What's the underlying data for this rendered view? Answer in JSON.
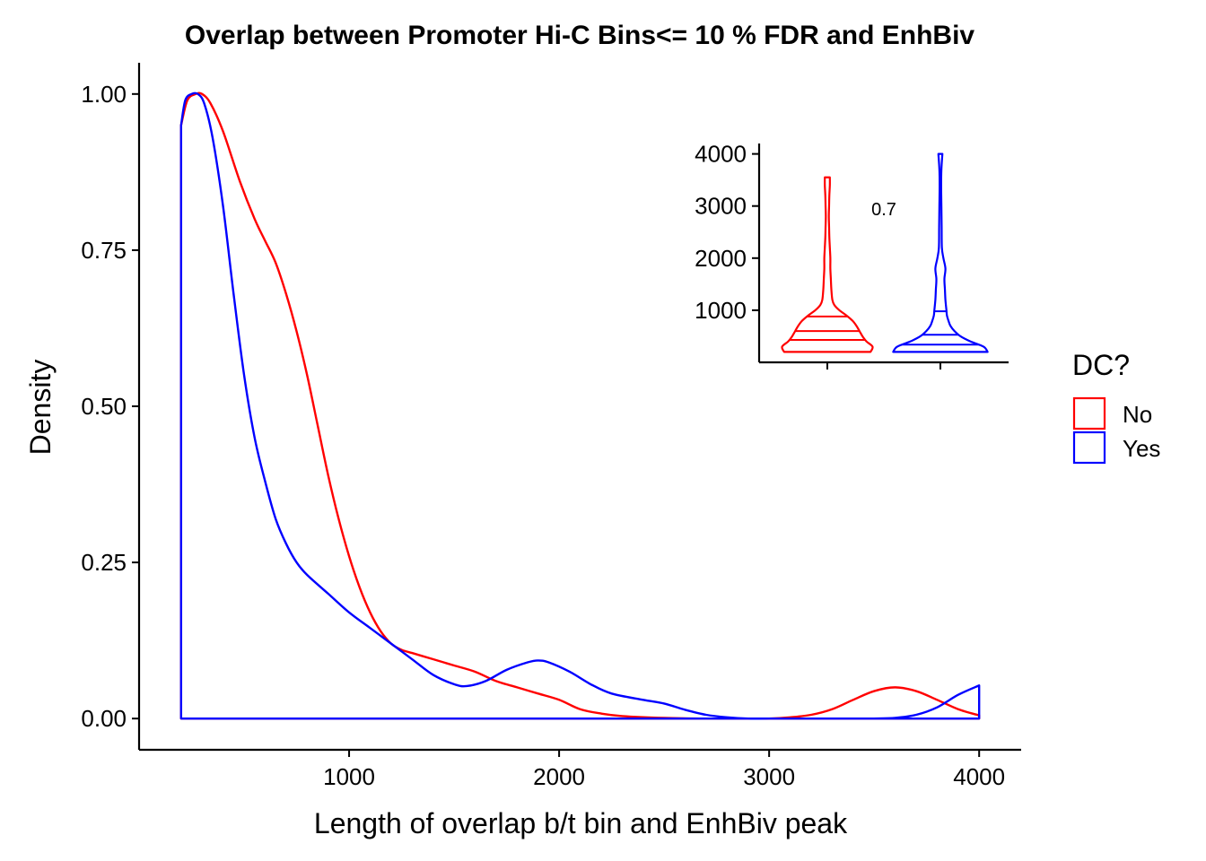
{
  "chart_data": [
    {
      "type": "area",
      "title": "Overlap between Promoter Hi-C Bins<= 10 % FDR and EnhBiv",
      "xlabel": "Length of overlap b/t bin and EnhBiv peak",
      "ylabel": "Density",
      "xlim": [
        0,
        4200
      ],
      "ylim": [
        -0.05,
        1.05
      ],
      "x_ticks": [
        1000,
        2000,
        3000,
        4000
      ],
      "x_tick_labels": [
        "1000",
        "2000",
        "3000",
        "4000"
      ],
      "y_ticks": [
        0,
        0.25,
        0.5,
        0.75,
        1.0
      ],
      "y_tick_labels": [
        "0.00",
        "0.25",
        "0.50",
        "0.75",
        "1.00"
      ],
      "grid": false,
      "legend": {
        "title": "DC?",
        "placement": "right",
        "entries": [
          {
            "label": "No",
            "color": "#ff0000"
          },
          {
            "label": "Yes",
            "color": "#0000ff"
          }
        ]
      },
      "series": [
        {
          "name": "No",
          "color": "#ff0000",
          "x": [
            200,
            230,
            270,
            300,
            340,
            400,
            480,
            550,
            600,
            650,
            700,
            750,
            800,
            850,
            900,
            950,
            1000,
            1050,
            1100,
            1150,
            1200,
            1250,
            1300,
            1350,
            1400,
            1450,
            1500,
            1600,
            1700,
            1800,
            1900,
            2000,
            2100,
            2200,
            2300,
            2500,
            2700,
            2900,
            3000,
            3100,
            3200,
            3300,
            3400,
            3500,
            3600,
            3700,
            3800,
            3900,
            4000
          ],
          "y": [
            0.95,
            0.99,
            1.0,
            1.0,
            0.985,
            0.94,
            0.86,
            0.8,
            0.765,
            0.73,
            0.68,
            0.62,
            0.55,
            0.47,
            0.39,
            0.32,
            0.26,
            0.21,
            0.17,
            0.14,
            0.12,
            0.11,
            0.105,
            0.1,
            0.095,
            0.09,
            0.085,
            0.075,
            0.06,
            0.05,
            0.04,
            0.03,
            0.015,
            0.008,
            0.004,
            0.001,
            0.0,
            0.0,
            0.0,
            0.002,
            0.006,
            0.015,
            0.03,
            0.044,
            0.05,
            0.044,
            0.03,
            0.015,
            0.005
          ]
        },
        {
          "name": "Yes",
          "color": "#0000ff",
          "x": [
            200,
            220,
            250,
            280,
            310,
            350,
            400,
            450,
            500,
            550,
            600,
            650,
            700,
            750,
            800,
            900,
            1000,
            1100,
            1200,
            1300,
            1400,
            1500,
            1560,
            1650,
            1750,
            1850,
            1900,
            1950,
            2050,
            2150,
            2250,
            2400,
            2500,
            2600,
            2700,
            2800,
            2900,
            3000,
            3200,
            3400,
            3500,
            3600,
            3700,
            3800,
            3900,
            4000
          ],
          "y": [
            0.95,
            0.99,
            1.0,
            1.0,
            0.985,
            0.93,
            0.82,
            0.68,
            0.55,
            0.45,
            0.38,
            0.32,
            0.28,
            0.25,
            0.23,
            0.2,
            0.17,
            0.145,
            0.12,
            0.095,
            0.07,
            0.055,
            0.052,
            0.06,
            0.078,
            0.09,
            0.093,
            0.09,
            0.075,
            0.055,
            0.04,
            0.03,
            0.024,
            0.014,
            0.006,
            0.002,
            0.0,
            0.0,
            0.0,
            0.0,
            0.0,
            0.001,
            0.006,
            0.018,
            0.038,
            0.053
          ]
        }
      ]
    },
    {
      "type": "violin",
      "title": "",
      "xlabel": "",
      "ylabel": "",
      "ylim": [
        0,
        4200
      ],
      "y_ticks": [
        1000,
        2000,
        3000,
        4000
      ],
      "y_tick_labels": [
        "1000",
        "2000",
        "3000",
        "4000"
      ],
      "annotation": "0.7",
      "groups": [
        {
          "name": "No",
          "color": "#ff0000",
          "quantiles": [
            430,
            600,
            880
          ],
          "profile": [
            [
              200,
              0.86
            ],
            [
              300,
              0.9
            ],
            [
              400,
              0.78
            ],
            [
              500,
              0.7
            ],
            [
              600,
              0.64
            ],
            [
              700,
              0.58
            ],
            [
              800,
              0.5
            ],
            [
              900,
              0.38
            ],
            [
              1000,
              0.24
            ],
            [
              1100,
              0.14
            ],
            [
              1200,
              0.1
            ],
            [
              1400,
              0.08
            ],
            [
              1600,
              0.07
            ],
            [
              1800,
              0.06
            ],
            [
              2000,
              0.06
            ],
            [
              2200,
              0.05
            ],
            [
              2400,
              0.04
            ],
            [
              2600,
              0.035
            ],
            [
              2800,
              0.03
            ],
            [
              3000,
              0.035
            ],
            [
              3200,
              0.04
            ],
            [
              3400,
              0.05
            ],
            [
              3550,
              0.05
            ]
          ]
        },
        {
          "name": "Yes",
          "color": "#0000ff",
          "quantiles": [
            340,
            530,
            980
          ],
          "profile": [
            [
              200,
              0.94
            ],
            [
              300,
              0.86
            ],
            [
              400,
              0.6
            ],
            [
              500,
              0.4
            ],
            [
              600,
              0.28
            ],
            [
              700,
              0.2
            ],
            [
              800,
              0.16
            ],
            [
              900,
              0.13
            ],
            [
              1000,
              0.12
            ],
            [
              1200,
              0.1
            ],
            [
              1400,
              0.09
            ],
            [
              1600,
              0.08
            ],
            [
              1800,
              0.1
            ],
            [
              2000,
              0.06
            ],
            [
              2200,
              0.03
            ],
            [
              2600,
              0.025
            ],
            [
              3000,
              0.02
            ],
            [
              3400,
              0.015
            ],
            [
              3700,
              0.02
            ],
            [
              4000,
              0.04
            ]
          ]
        }
      ]
    }
  ]
}
